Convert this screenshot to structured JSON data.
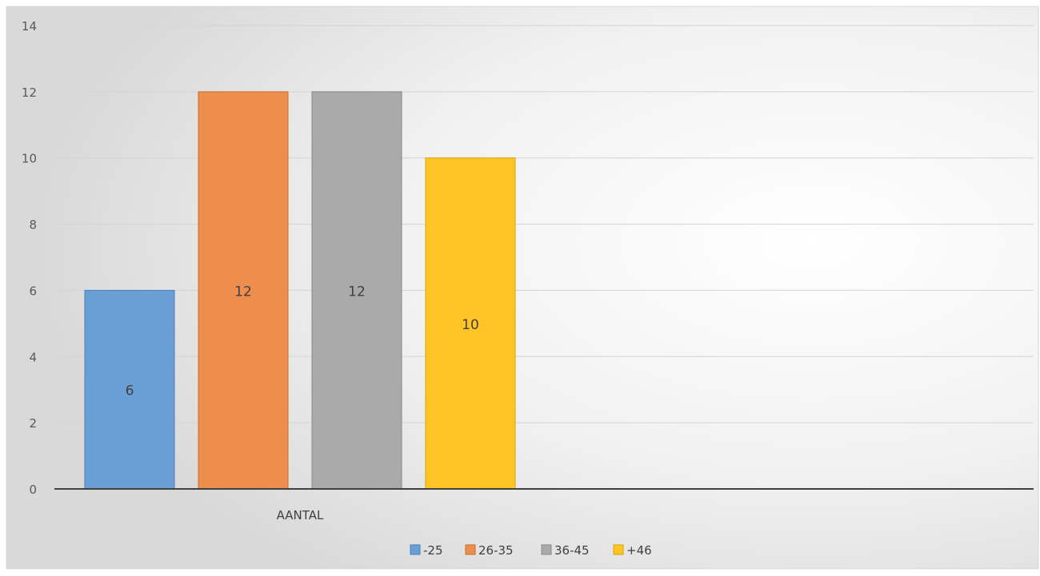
{
  "chart_data": {
    "type": "bar",
    "title": "",
    "xlabel": "",
    "ylabel": "",
    "categories": [
      "AANTAL"
    ],
    "ylim": [
      0,
      14
    ],
    "yticks": [
      0,
      2,
      4,
      6,
      8,
      10,
      12,
      14
    ],
    "grid": true,
    "legend_position": "bottom",
    "data_labels": true,
    "series": [
      {
        "name": "-25",
        "values": [
          6
        ],
        "color": "#6A9FD5",
        "stroke": "#4A7FB8"
      },
      {
        "name": "26-35",
        "values": [
          12
        ],
        "color": "#EE8E4E",
        "stroke": "#C96E30"
      },
      {
        "name": "36-45",
        "values": [
          12
        ],
        "color": "#AAAAAA",
        "stroke": "#888888"
      },
      {
        "name": "+46",
        "values": [
          10
        ],
        "color": "#FFC527",
        "stroke": "#D9A300"
      }
    ]
  }
}
